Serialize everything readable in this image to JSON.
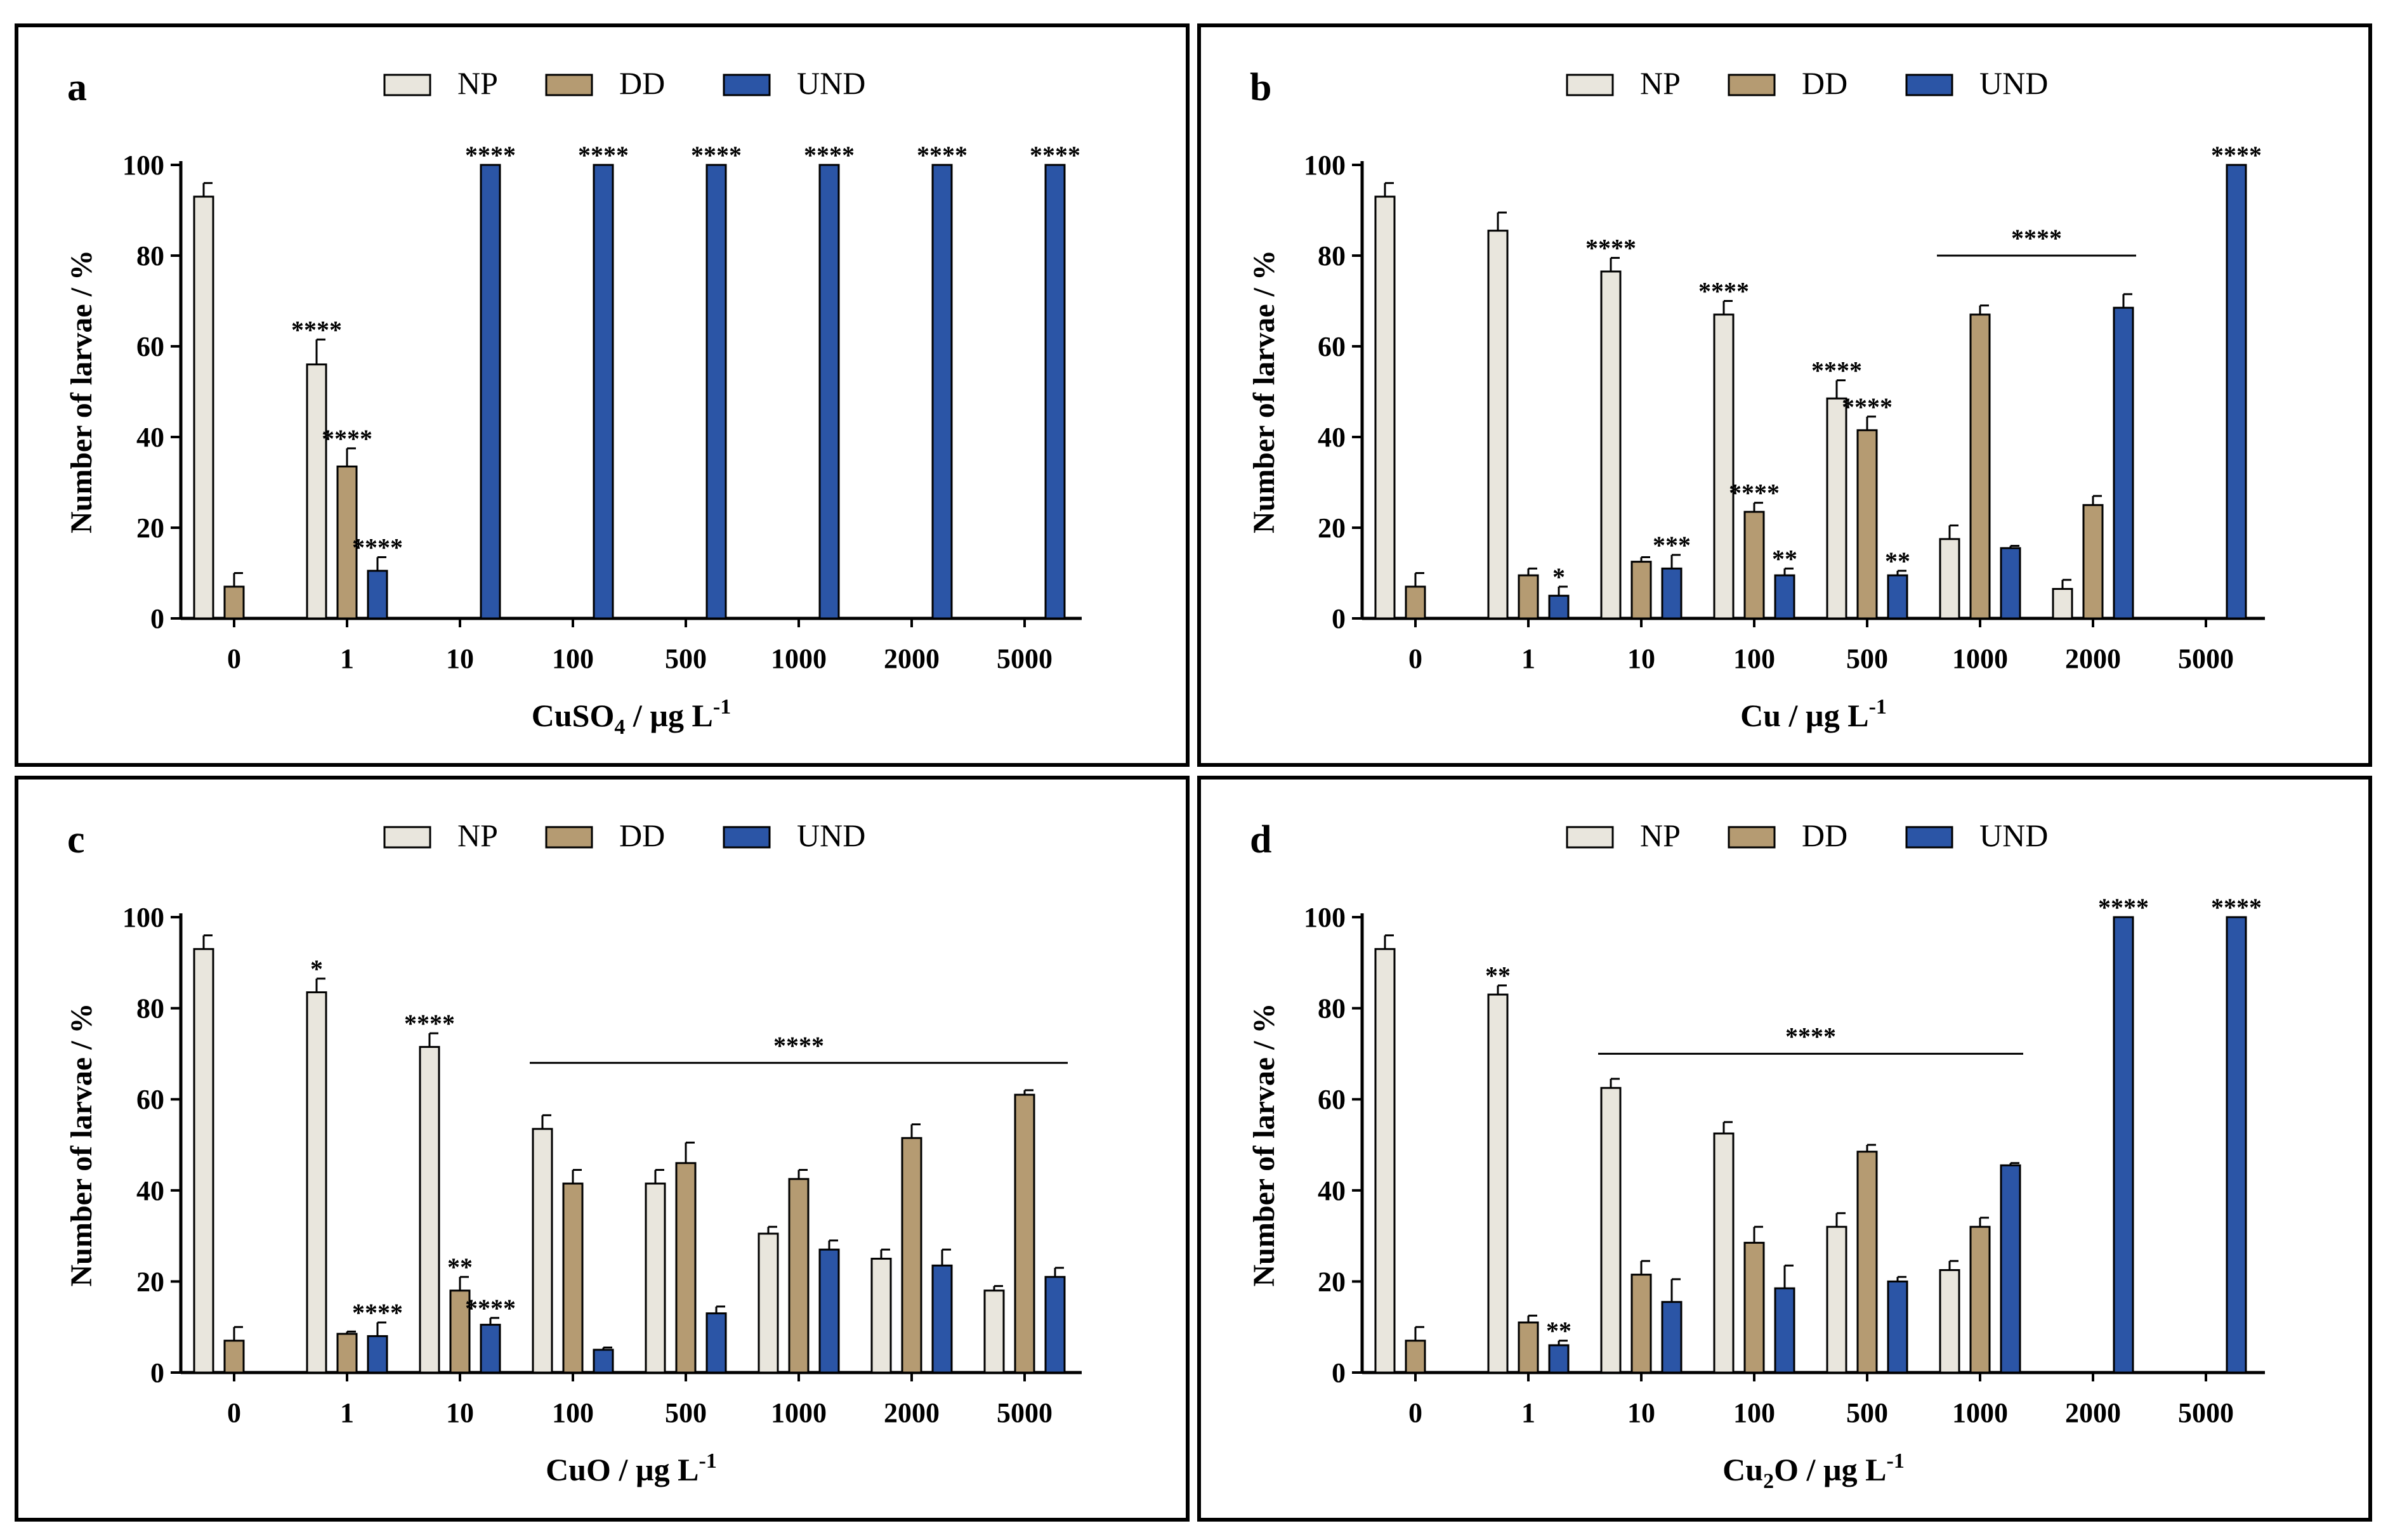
{
  "figure": {
    "legend": [
      "NP",
      "DD",
      "UND"
    ],
    "colors": {
      "NP": "#e9e6dd",
      "DD": "#b59b72",
      "UND": "#2b55a6",
      "border": "#000000"
    }
  },
  "chart_data": [
    {
      "id": "a",
      "type": "bar",
      "panel_letter": "a",
      "xlabel": "CuSO",
      "xlabel_sub": "4",
      "xlabel_unit": " / µg L",
      "xlabel_sup": "-1",
      "ylabel": "Number of larvae / %",
      "ylim": [
        0,
        100
      ],
      "yticks": [
        "0",
        "20",
        "40",
        "60",
        "80",
        "100"
      ],
      "categories": [
        "0",
        "1",
        "10",
        "100",
        "500",
        "1000",
        "2000",
        "5000"
      ],
      "series": [
        {
          "name": "NP",
          "values": [
            93,
            56,
            0,
            0,
            0,
            0,
            0,
            0
          ],
          "errors": [
            3,
            5.5,
            0,
            0,
            0,
            0,
            0,
            0
          ],
          "sig": [
            "",
            "****",
            "",
            "",
            "",
            "",
            "",
            ""
          ]
        },
        {
          "name": "DD",
          "values": [
            7,
            33.5,
            0,
            0,
            0,
            0,
            0,
            0
          ],
          "errors": [
            3,
            4,
            0,
            0,
            0,
            0,
            0,
            0
          ],
          "sig": [
            "",
            "****",
            "",
            "",
            "",
            "",
            "",
            ""
          ]
        },
        {
          "name": "UND",
          "values": [
            0,
            10.5,
            100,
            100,
            100,
            100,
            100,
            100
          ],
          "errors": [
            0,
            3,
            0,
            0,
            0,
            0,
            0,
            0
          ],
          "sig": [
            "",
            "****",
            "****",
            "****",
            "****",
            "****",
            "****",
            "****"
          ]
        }
      ],
      "brackets": []
    },
    {
      "id": "b",
      "type": "bar",
      "panel_letter": "b",
      "xlabel": "Cu",
      "xlabel_sub": "",
      "xlabel_unit": " / µg L",
      "xlabel_sup": "-1",
      "ylabel": "Number of larvae / %",
      "ylim": [
        0,
        100
      ],
      "yticks": [
        "0",
        "20",
        "40",
        "60",
        "80",
        "100"
      ],
      "categories": [
        "0",
        "1",
        "10",
        "100",
        "500",
        "1000",
        "2000",
        "5000"
      ],
      "series": [
        {
          "name": "NP",
          "values": [
            93,
            85.5,
            76.5,
            67,
            48.5,
            17.5,
            6.5,
            0
          ],
          "errors": [
            3,
            4,
            3,
            3,
            4,
            3,
            2,
            0
          ],
          "sig": [
            "",
            "",
            "****",
            "****",
            "****",
            "",
            "",
            ""
          ]
        },
        {
          "name": "DD",
          "values": [
            7,
            9.5,
            12.5,
            23.5,
            41.5,
            67,
            25,
            0
          ],
          "errors": [
            3,
            1.5,
            1,
            2,
            3,
            2,
            2,
            0
          ],
          "sig": [
            "",
            "",
            "",
            "****",
            "****",
            "",
            "",
            ""
          ]
        },
        {
          "name": "UND",
          "values": [
            0,
            5,
            11,
            9.5,
            9.5,
            15.5,
            68.5,
            100
          ],
          "errors": [
            0,
            2,
            3,
            1.5,
            1,
            0.5,
            3,
            0
          ],
          "sig": [
            "",
            "*",
            "***",
            "**",
            "**",
            "",
            "",
            "****"
          ]
        }
      ],
      "brackets": [
        {
          "from": 5,
          "to": 6,
          "y": 80,
          "label": "****"
        }
      ]
    },
    {
      "id": "c",
      "type": "bar",
      "panel_letter": "c",
      "xlabel": "CuO",
      "xlabel_sub": "",
      "xlabel_unit": " / µg L",
      "xlabel_sup": "-1",
      "ylabel": "Number of larvae / %",
      "ylim": [
        0,
        100
      ],
      "yticks": [
        "0",
        "20",
        "40",
        "60",
        "80",
        "100"
      ],
      "categories": [
        "0",
        "1",
        "10",
        "100",
        "500",
        "1000",
        "2000",
        "5000"
      ],
      "series": [
        {
          "name": "NP",
          "values": [
            93,
            83.5,
            71.5,
            53.5,
            41.5,
            30.5,
            25,
            18
          ],
          "errors": [
            3,
            3,
            3,
            3,
            3,
            1.5,
            2,
            1
          ],
          "sig": [
            "",
            "*",
            "****",
            "",
            "",
            "",
            "",
            ""
          ]
        },
        {
          "name": "DD",
          "values": [
            7,
            8.5,
            18,
            41.5,
            46,
            42.5,
            51.5,
            61
          ],
          "errors": [
            3,
            0.5,
            3,
            3,
            4.5,
            2,
            3,
            1
          ],
          "sig": [
            "",
            "",
            "**",
            "",
            "",
            "",
            "",
            ""
          ]
        },
        {
          "name": "UND",
          "values": [
            0,
            8,
            10.5,
            5,
            13,
            27,
            23.5,
            21
          ],
          "errors": [
            0,
            3,
            1.5,
            0.5,
            1.5,
            2,
            3.5,
            2
          ],
          "sig": [
            "",
            "****",
            "****",
            "",
            "",
            "",
            "",
            ""
          ]
        }
      ],
      "brackets": [
        {
          "from": 3,
          "to": 7,
          "y": 68,
          "label": "****"
        }
      ]
    },
    {
      "id": "d",
      "type": "bar",
      "panel_letter": "d",
      "xlabel": "Cu",
      "xlabel_sub": "2",
      "xlabel_unit": "O / µg L",
      "xlabel_sup": "-1",
      "ylabel": "Number of larvae / %",
      "ylim": [
        0,
        100
      ],
      "yticks": [
        "0",
        "20",
        "40",
        "60",
        "80",
        "100"
      ],
      "categories": [
        "0",
        "1",
        "10",
        "100",
        "500",
        "1000",
        "2000",
        "5000"
      ],
      "series": [
        {
          "name": "NP",
          "values": [
            93,
            83,
            62.5,
            52.5,
            32,
            22.5,
            0,
            0
          ],
          "errors": [
            3,
            2,
            2,
            2.5,
            3,
            2,
            0,
            0
          ],
          "sig": [
            "",
            "**",
            "",
            "",
            "",
            "",
            "",
            ""
          ]
        },
        {
          "name": "DD",
          "values": [
            7,
            11,
            21.5,
            28.5,
            48.5,
            32,
            0,
            0
          ],
          "errors": [
            3,
            1.5,
            3,
            3.5,
            1.5,
            2,
            0,
            0
          ],
          "sig": [
            "",
            "",
            "",
            "",
            "",
            "",
            "",
            ""
          ]
        },
        {
          "name": "UND",
          "values": [
            0,
            6,
            15.5,
            18.5,
            20,
            45.5,
            100,
            100
          ],
          "errors": [
            0,
            1,
            5,
            5,
            1,
            0.5,
            0,
            0
          ],
          "sig": [
            "",
            "**",
            "",
            "",
            "",
            "",
            "****",
            "****"
          ]
        }
      ],
      "brackets": [
        {
          "from": 2,
          "to": 5,
          "y": 70,
          "label": "****"
        }
      ]
    }
  ]
}
